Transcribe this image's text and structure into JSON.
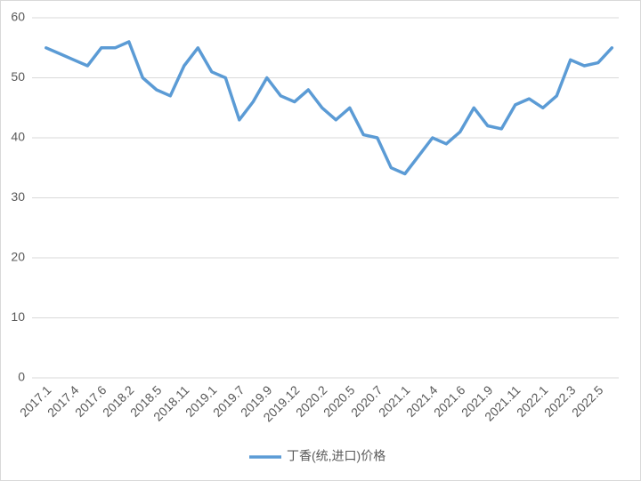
{
  "chart_data": {
    "type": "line",
    "categories": [
      "2017.1",
      null,
      "2017.4",
      null,
      "2017.6",
      null,
      "2018.2",
      null,
      "2018.5",
      null,
      "2018.11",
      null,
      "2019.1",
      null,
      "2019.7",
      null,
      "2019.9",
      null,
      "2019.12",
      null,
      "2020.2",
      null,
      "2020.5",
      null,
      "2020.7",
      null,
      "2021.1",
      null,
      "2021.4",
      null,
      "2021.6",
      null,
      "2021.9",
      null,
      "2021.11",
      null,
      "2022.1",
      null,
      "2022.3",
      null,
      "2022.5",
      null
    ],
    "series": [
      {
        "name": "丁香(统,进口)价格",
        "color": "#5b9bd5",
        "values": [
          55,
          54,
          53,
          52,
          55,
          55,
          56,
          50,
          48,
          47,
          52,
          55,
          51,
          50,
          43,
          46,
          50,
          47,
          46,
          48,
          45,
          43,
          45,
          40.5,
          40,
          35,
          34,
          37,
          40,
          39,
          41,
          45,
          42,
          41.5,
          45.5,
          46.5,
          45,
          47,
          53,
          52,
          52.5,
          55
        ]
      }
    ],
    "ylim": [
      0,
      60
    ],
    "yticks": [
      0,
      10,
      20,
      30,
      40,
      50,
      60
    ],
    "grid": true
  }
}
